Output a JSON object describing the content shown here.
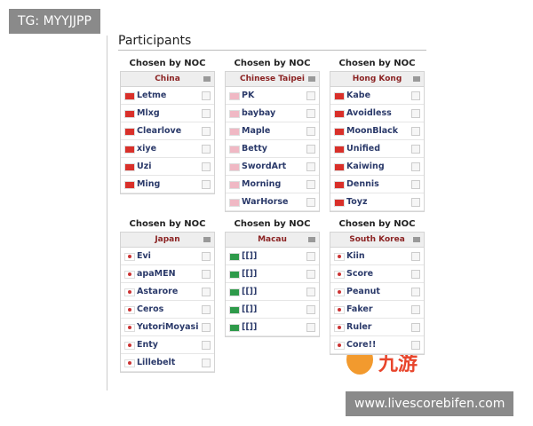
{
  "watermark_top": "TG: MYYJJPP",
  "heading": "Participants",
  "groups": [
    {
      "chosen_by": "Chosen by NOC",
      "region": "China",
      "flag_color": "#d9302a",
      "players": [
        "Letme",
        "Mlxg",
        "Clearlove",
        "xiye",
        "Uzi",
        "Ming"
      ]
    },
    {
      "chosen_by": "Chosen by NOC",
      "region": "Chinese Taipei",
      "flag_color": "#f0b8c4",
      "players": [
        "PK",
        "baybay",
        "Maple",
        "Betty",
        "SwordArt",
        "Morning",
        "WarHorse"
      ]
    },
    {
      "chosen_by": "Chosen by NOC",
      "region": "Hong Kong",
      "flag_color": "#d9302a",
      "players": [
        "Kabe",
        "Avoidless",
        "MoonBlack",
        "Unified",
        "Kaiwing",
        "Dennis",
        "Toyz"
      ]
    },
    {
      "chosen_by": "Chosen by NOC",
      "region": "Japan",
      "flag_color": "#ffffff",
      "players": [
        "Evi",
        "apaMEN",
        "Astarore",
        "Ceros",
        "YutoriMoyasi",
        "Enty",
        "Lillebelt"
      ]
    },
    {
      "chosen_by": "Chosen by NOC",
      "region": "Macau",
      "flag_color": "#2e9a4a",
      "players": [
        "[[]]",
        "[[]]",
        "[[]]",
        "[[]]",
        "[[]]"
      ]
    },
    {
      "chosen_by": "Chosen by NOC",
      "region": "South Korea",
      "flag_color": "#ffffff",
      "players": [
        "Kiin",
        "Score",
        "Peanut",
        "Faker",
        "Ruler",
        "Core!!"
      ]
    }
  ],
  "logo_text": "九游",
  "watermark_bottom": "www.livescorebifen.com"
}
